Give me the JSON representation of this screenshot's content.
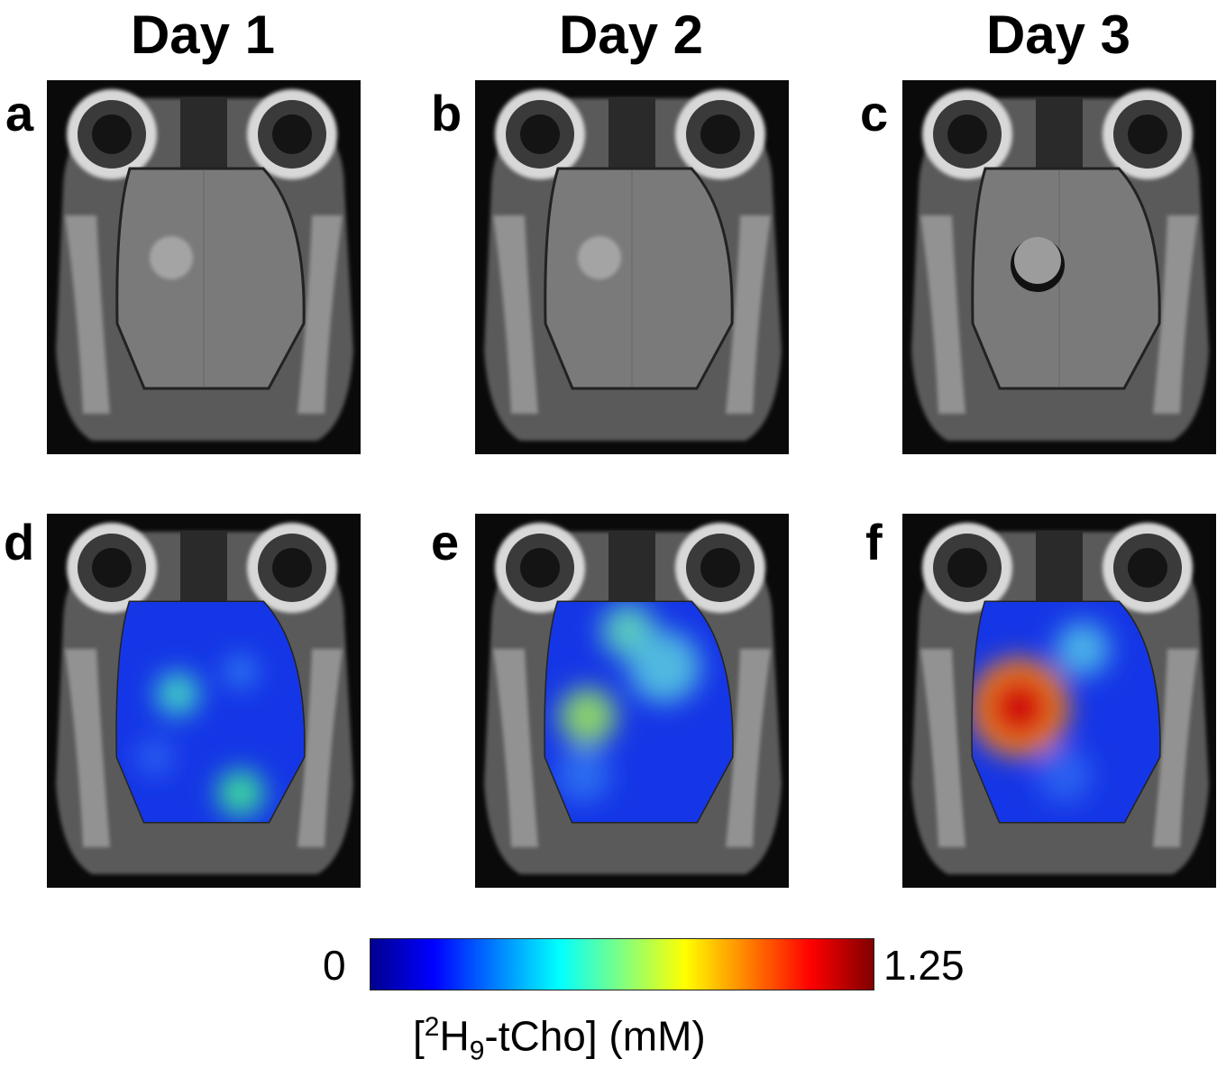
{
  "columns": [
    {
      "title": "Day 1"
    },
    {
      "title": "Day 2"
    },
    {
      "title": "Day 3"
    }
  ],
  "panels": [
    {
      "letter": "a",
      "type": "mri",
      "tumor": "small"
    },
    {
      "letter": "b",
      "type": "mri",
      "tumor": "small"
    },
    {
      "letter": "c",
      "type": "mri",
      "tumor": "dark-rim"
    },
    {
      "letter": "d",
      "type": "overlay",
      "peak_level": "low"
    },
    {
      "letter": "e",
      "type": "overlay",
      "peak_level": "medium"
    },
    {
      "letter": "f",
      "type": "overlay",
      "peak_level": "high"
    }
  ],
  "colorbar": {
    "min_label": "0",
    "max_label": "1.25",
    "label_prefix": "[",
    "label_sup": "2",
    "label_mid": "H",
    "label_sub": "9",
    "label_suffix": "-tCho] (mM)",
    "colormap": [
      "#00008f",
      "#0000ff",
      "#0080ff",
      "#00ffff",
      "#80ff80",
      "#ffff00",
      "#ff8000",
      "#ff0000",
      "#800000"
    ]
  }
}
